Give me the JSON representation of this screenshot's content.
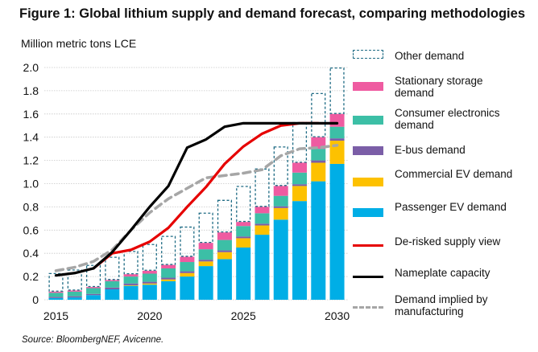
{
  "title": "Figure 1: Global lithium supply and demand forecast, comparing methodologies",
  "source": "Source: BloombergNEF, Avicenne.",
  "chart_data": {
    "type": "bar",
    "ylabel": "Million metric tons LCE",
    "ylim": [
      0,
      2.0
    ],
    "yticks": [
      "0",
      "0.2",
      "0.4",
      "0.6",
      "0.8",
      "1.0",
      "1.2",
      "1.4",
      "1.6",
      "1.8",
      "2.0"
    ],
    "xticks": [
      "2015",
      "2020",
      "2025",
      "2030"
    ],
    "grid": true,
    "legend_position": "right",
    "categories": [
      2015,
      2016,
      2017,
      2018,
      2019,
      2020,
      2021,
      2022,
      2023,
      2024,
      2025,
      2026,
      2027,
      2028,
      2029,
      2030
    ],
    "stacked_series": [
      {
        "name": "Passenger EV demand",
        "color": "#00aee6",
        "values": [
          0.015,
          0.02,
          0.04,
          0.09,
          0.12,
          0.13,
          0.16,
          0.2,
          0.29,
          0.35,
          0.45,
          0.56,
          0.69,
          0.85,
          1.02,
          1.17
        ]
      },
      {
        "name": "Commercial EV demand",
        "color": "#fdc100",
        "values": [
          0,
          0,
          0,
          0,
          0.005,
          0.01,
          0.015,
          0.03,
          0.04,
          0.06,
          0.08,
          0.08,
          0.1,
          0.13,
          0.16,
          0.2
        ]
      },
      {
        "name": "E-bus demand",
        "color": "#7b5ea7",
        "values": [
          0.01,
          0.01,
          0.01,
          0.015,
          0.015,
          0.015,
          0.015,
          0.015,
          0.015,
          0.015,
          0.015,
          0.015,
          0.015,
          0.015,
          0.02,
          0.02
        ]
      },
      {
        "name": "Consumer electronics demand",
        "color": "#3cbfa6",
        "values": [
          0.035,
          0.04,
          0.05,
          0.055,
          0.06,
          0.07,
          0.08,
          0.08,
          0.09,
          0.09,
          0.09,
          0.09,
          0.09,
          0.1,
          0.1,
          0.1
        ]
      },
      {
        "name": "Stationary storage demand",
        "color": "#ef5ba1",
        "values": [
          0.01,
          0.01,
          0.01,
          0.01,
          0.02,
          0.025,
          0.03,
          0.045,
          0.055,
          0.065,
          0.035,
          0.055,
          0.085,
          0.085,
          0.1,
          0.11
        ]
      },
      {
        "name": "Other demand",
        "color": "#1e6b84",
        "dashed": true,
        "values": [
          0.16,
          0.18,
          0.19,
          0.2,
          0.2,
          0.23,
          0.25,
          0.26,
          0.26,
          0.28,
          0.31,
          0.33,
          0.34,
          0.35,
          0.38,
          0.4
        ]
      }
    ],
    "line_series": [
      {
        "name": "De-risked supply view",
        "color": "#e60000",
        "x": [
          2017,
          2018,
          2019,
          2020,
          2021,
          2022,
          2023,
          2024,
          2025,
          2026,
          2027,
          2028,
          2029
        ],
        "values": [
          0.27,
          0.4,
          0.43,
          0.5,
          0.62,
          0.8,
          0.97,
          1.17,
          1.32,
          1.43,
          1.5,
          1.52,
          1.52
        ]
      },
      {
        "name": "Nameplate capacity",
        "color": "#000000",
        "x": [
          2015,
          2016,
          2017,
          2018,
          2019,
          2020,
          2021,
          2022,
          2023,
          2024,
          2025,
          2026,
          2027,
          2028,
          2029,
          2030
        ],
        "values": [
          0.21,
          0.23,
          0.27,
          0.41,
          0.6,
          0.8,
          0.98,
          1.31,
          1.38,
          1.49,
          1.52,
          1.52,
          1.52,
          1.52,
          1.52,
          1.52
        ]
      },
      {
        "name": "Demand implied by manufacturing",
        "color": "#a6a6a6",
        "dashed": true,
        "x": [
          2015,
          2016,
          2017,
          2018,
          2019,
          2020,
          2021,
          2022,
          2023,
          2024,
          2025,
          2026,
          2027,
          2028,
          2029,
          2030
        ],
        "values": [
          0.25,
          0.28,
          0.33,
          0.43,
          0.6,
          0.75,
          0.87,
          0.96,
          1.05,
          1.07,
          1.09,
          1.12,
          1.24,
          1.3,
          1.31,
          1.33
        ]
      }
    ],
    "legend": [
      "Other demand",
      "Stationary storage demand",
      "Consumer electronics demand",
      "E-bus demand",
      "Commercial EV demand",
      "Passenger EV demand",
      "De-risked supply view",
      "Nameplate capacity",
      "Demand implied by manufacturing"
    ]
  }
}
